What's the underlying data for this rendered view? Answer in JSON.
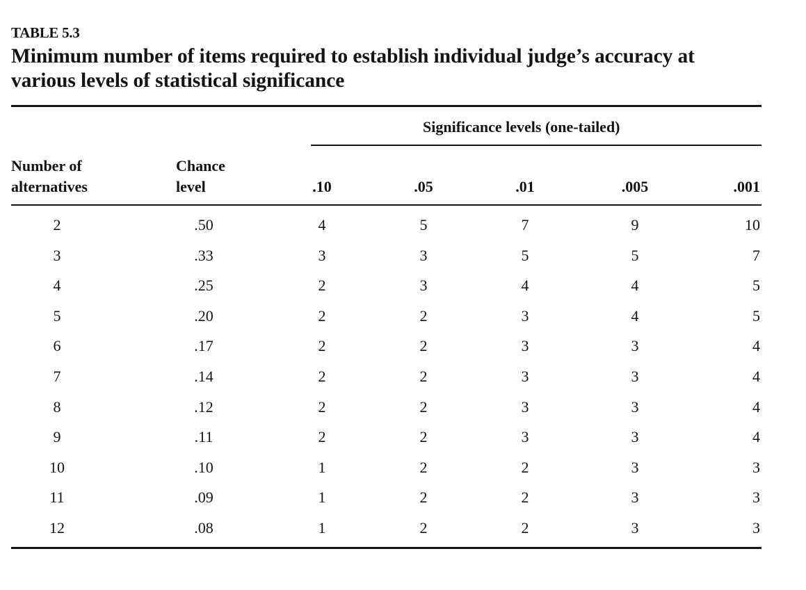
{
  "table": {
    "label": "TABLE 5.3",
    "caption": "Minimum number of items required to establish individual judge’s accuracy at various levels of statistical significance",
    "spanner": "Significance levels (one-tailed)",
    "headers": {
      "alternatives_line1": "Number of",
      "alternatives_line2": "alternatives",
      "chance_line1": "Chance",
      "chance_line2": "level",
      "levels": [
        ".10",
        ".05",
        ".01",
        ".005",
        ".001"
      ]
    },
    "rows": [
      [
        "2",
        ".50",
        "4",
        "5",
        "7",
        "9",
        "10"
      ],
      [
        "3",
        ".33",
        "3",
        "3",
        "5",
        "5",
        "7"
      ],
      [
        "4",
        ".25",
        "2",
        "3",
        "4",
        "4",
        "5"
      ],
      [
        "5",
        ".20",
        "2",
        "2",
        "3",
        "4",
        "5"
      ],
      [
        "6",
        ".17",
        "2",
        "2",
        "3",
        "3",
        "4"
      ],
      [
        "7",
        ".14",
        "2",
        "2",
        "3",
        "3",
        "4"
      ],
      [
        "8",
        ".12",
        "2",
        "2",
        "3",
        "3",
        "4"
      ],
      [
        "9",
        ".11",
        "2",
        "2",
        "3",
        "3",
        "4"
      ],
      [
        "10",
        ".10",
        "1",
        "2",
        "2",
        "3",
        "3"
      ],
      [
        "11",
        ".09",
        "1",
        "2",
        "2",
        "3",
        "3"
      ],
      [
        "12",
        ".08",
        "1",
        "2",
        "2",
        "3",
        "3"
      ]
    ]
  }
}
